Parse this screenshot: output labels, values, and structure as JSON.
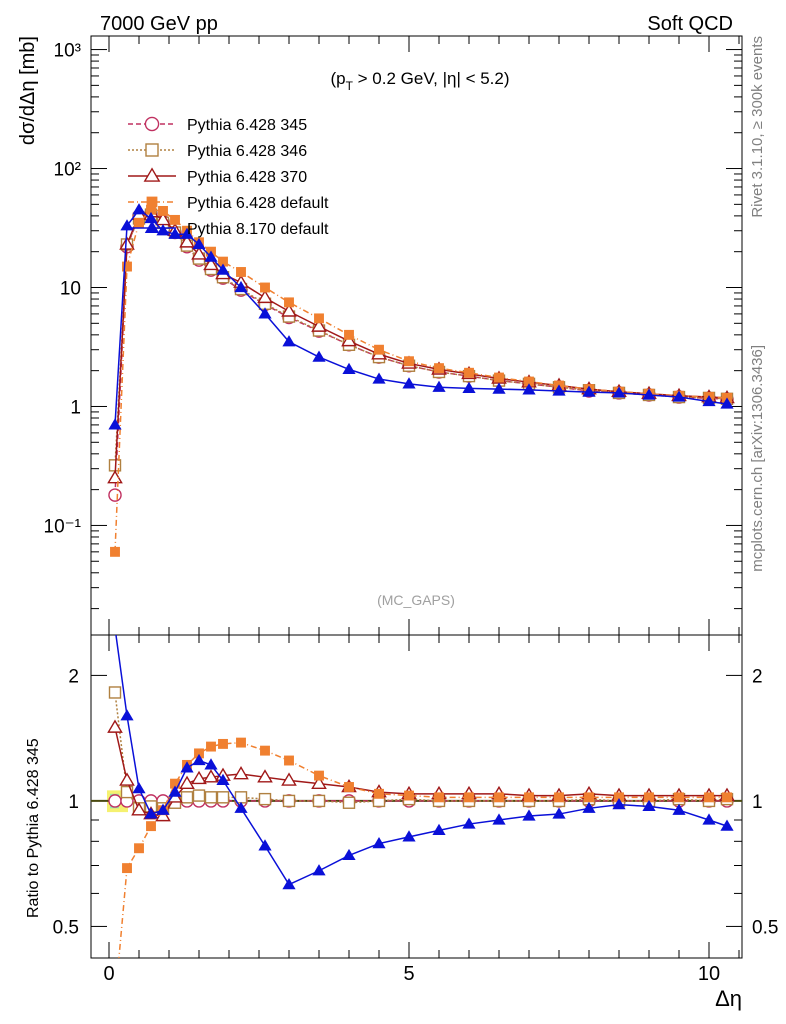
{
  "header": {
    "left": "7000 GeV pp",
    "right": "Soft QCD"
  },
  "side": {
    "top": "Rivet 3.1.10, ≥ 300k events",
    "bottom": "mcplots.cern.ch [arXiv:1306.3436]"
  },
  "chart_data": {
    "type": "line",
    "annotation": "(p_T > 0.2 GeV, |η| < 5.2)",
    "analysis": "(MC_GAPS)",
    "xlabel": "Δη",
    "xlim": [
      -0.3,
      10.55
    ],
    "x_ticks": [
      "0",
      "5",
      "10"
    ],
    "main": {
      "ylabel": "dσ/dΔη [mb]",
      "scale": "log",
      "ylim": [
        0.012,
        1300
      ],
      "y_ticks": [
        "10⁻¹",
        "1",
        "10",
        "10²",
        "10³"
      ]
    },
    "ratio": {
      "ylabel": "Ratio to Pythia 6.428 345",
      "scale": "log",
      "ylim": [
        0.42,
        2.5
      ],
      "y_ticks": [
        "0.5",
        "1",
        "2"
      ]
    },
    "legend_position": "top-left",
    "series": [
      {
        "name": "Pythia 6.428 345",
        "color": "#c03060",
        "marker": "open-circle",
        "dash": "5,3",
        "x": [
          0.1,
          0.3,
          0.5,
          0.7,
          0.9,
          1.1,
          1.3,
          1.5,
          1.7,
          1.9,
          2.2,
          2.6,
          3.0,
          3.5,
          4.0,
          4.5,
          5.0,
          5.5,
          6.0,
          6.5,
          7.0,
          7.5,
          8.0,
          8.5,
          9.0,
          9.5,
          10.0,
          10.3
        ],
        "y": [
          0.18,
          22,
          40,
          42,
          36,
          29,
          22,
          17,
          14,
          12,
          9.5,
          7.2,
          5.6,
          4.3,
          3.3,
          2.6,
          2.2,
          1.95,
          1.8,
          1.65,
          1.55,
          1.45,
          1.35,
          1.3,
          1.25,
          1.2,
          1.17,
          1.15
        ],
        "ratio": [
          1,
          1,
          1,
          1,
          1,
          1,
          1,
          1,
          1,
          1,
          1,
          1,
          1,
          1,
          1,
          1,
          1,
          1,
          1,
          1,
          1,
          1,
          1,
          1,
          1,
          1,
          1,
          1
        ]
      },
      {
        "name": "Pythia 6.428 346",
        "color": "#b08040",
        "marker": "open-square",
        "dash": "2,2",
        "x": [
          0.1,
          0.3,
          0.5,
          0.7,
          0.9,
          1.1,
          1.3,
          1.5,
          1.7,
          1.9,
          2.2,
          2.6,
          3.0,
          3.5,
          4.0,
          4.5,
          5.0,
          5.5,
          6.0,
          6.5,
          7.0,
          7.5,
          8.0,
          8.5,
          9.0,
          9.5,
          10.0,
          10.3
        ],
        "y": [
          0.32,
          23,
          38,
          41,
          35,
          29,
          22.5,
          17.5,
          14.3,
          12.2,
          9.7,
          7.3,
          5.7,
          4.35,
          3.3,
          2.6,
          2.2,
          1.95,
          1.8,
          1.65,
          1.55,
          1.45,
          1.37,
          1.3,
          1.25,
          1.2,
          1.18,
          1.16
        ],
        "ratio": [
          1.82,
          1.05,
          0.96,
          0.97,
          0.96,
          0.99,
          1.02,
          1.03,
          1.02,
          1.02,
          1.02,
          1.01,
          1.0,
          1.0,
          0.99,
          1.0,
          1.01,
          1.0,
          1.0,
          1.0,
          1.0,
          1.0,
          1.01,
          1.0,
          1.0,
          1.01,
          1.0,
          1.01
        ]
      },
      {
        "name": "Pythia 6.428 370",
        "color": "#a01818",
        "marker": "open-triangle",
        "dash": "",
        "x": [
          0.1,
          0.3,
          0.5,
          0.7,
          0.9,
          1.1,
          1.3,
          1.5,
          1.7,
          1.9,
          2.2,
          2.6,
          3.0,
          3.5,
          4.0,
          4.5,
          5.0,
          5.5,
          6.0,
          6.5,
          7.0,
          7.5,
          8.0,
          8.5,
          9.0,
          9.5,
          10.0,
          10.3
        ],
        "y": [
          0.25,
          23,
          41,
          43,
          37,
          30,
          24,
          19,
          15.5,
          13,
          11,
          8.2,
          6.3,
          4.7,
          3.55,
          2.75,
          2.3,
          2.05,
          1.88,
          1.72,
          1.6,
          1.5,
          1.4,
          1.33,
          1.28,
          1.23,
          1.2,
          1.18
        ],
        "ratio": [
          1.5,
          1.12,
          0.95,
          0.93,
          0.92,
          1.02,
          1.1,
          1.13,
          1.14,
          1.15,
          1.16,
          1.14,
          1.12,
          1.1,
          1.08,
          1.05,
          1.04,
          1.04,
          1.04,
          1.04,
          1.03,
          1.03,
          1.04,
          1.03,
          1.03,
          1.03,
          1.03,
          1.03
        ]
      },
      {
        "name": "Pythia 6.428 default",
        "color": "#f08030",
        "marker": "filled-square",
        "dash": "6,3,1,3",
        "x": [
          0.1,
          0.3,
          0.5,
          0.7,
          0.9,
          1.1,
          1.3,
          1.5,
          1.7,
          1.9,
          2.2,
          2.6,
          3.0,
          3.5,
          4.0,
          4.5,
          5.0,
          5.5,
          6.0,
          6.5,
          7.0,
          7.5,
          8.0,
          8.5,
          9.0,
          9.5,
          10.0,
          10.3
        ],
        "y": [
          0.06,
          15,
          35,
          45,
          44,
          37,
          30,
          24,
          20,
          16.5,
          13.5,
          10,
          7.5,
          5.5,
          4.0,
          3.0,
          2.4,
          2.1,
          1.92,
          1.75,
          1.62,
          1.5,
          1.4,
          1.33,
          1.28,
          1.23,
          1.2,
          1.18
        ],
        "ratio": [
          0.33,
          0.69,
          0.77,
          0.87,
          0.95,
          1.1,
          1.22,
          1.3,
          1.35,
          1.37,
          1.38,
          1.32,
          1.25,
          1.15,
          1.08,
          1.04,
          1.03,
          1.02,
          1.02,
          1.02,
          1.02,
          1.02,
          1.02,
          1.02,
          1.02,
          1.02,
          1.02,
          1.02
        ]
      },
      {
        "name": "Pythia 8.170 default",
        "color": "#0a10d8",
        "marker": "filled-triangle",
        "dash": "",
        "x": [
          0.1,
          0.3,
          0.5,
          0.7,
          0.9,
          1.1,
          1.3,
          1.5,
          1.7,
          1.9,
          2.2,
          2.6,
          3.0,
          3.5,
          4.0,
          4.5,
          5.0,
          5.5,
          6.0,
          6.5,
          7.0,
          7.5,
          8.0,
          8.5,
          9.0,
          9.5,
          10.0,
          10.3
        ],
        "y": [
          0.7,
          33,
          45,
          38,
          30,
          28,
          28,
          23,
          18,
          14,
          10,
          6.0,
          3.5,
          2.6,
          2.05,
          1.7,
          1.55,
          1.45,
          1.42,
          1.4,
          1.38,
          1.35,
          1.32,
          1.3,
          1.25,
          1.2,
          1.1,
          1.05
        ],
        "ratio": [
          2.6,
          1.6,
          1.07,
          0.93,
          0.95,
          1.05,
          1.2,
          1.25,
          1.22,
          1.12,
          0.96,
          0.78,
          0.63,
          0.68,
          0.74,
          0.79,
          0.82,
          0.85,
          0.88,
          0.9,
          0.92,
          0.93,
          0.96,
          0.98,
          0.97,
          0.95,
          0.9,
          0.87
        ]
      }
    ]
  }
}
